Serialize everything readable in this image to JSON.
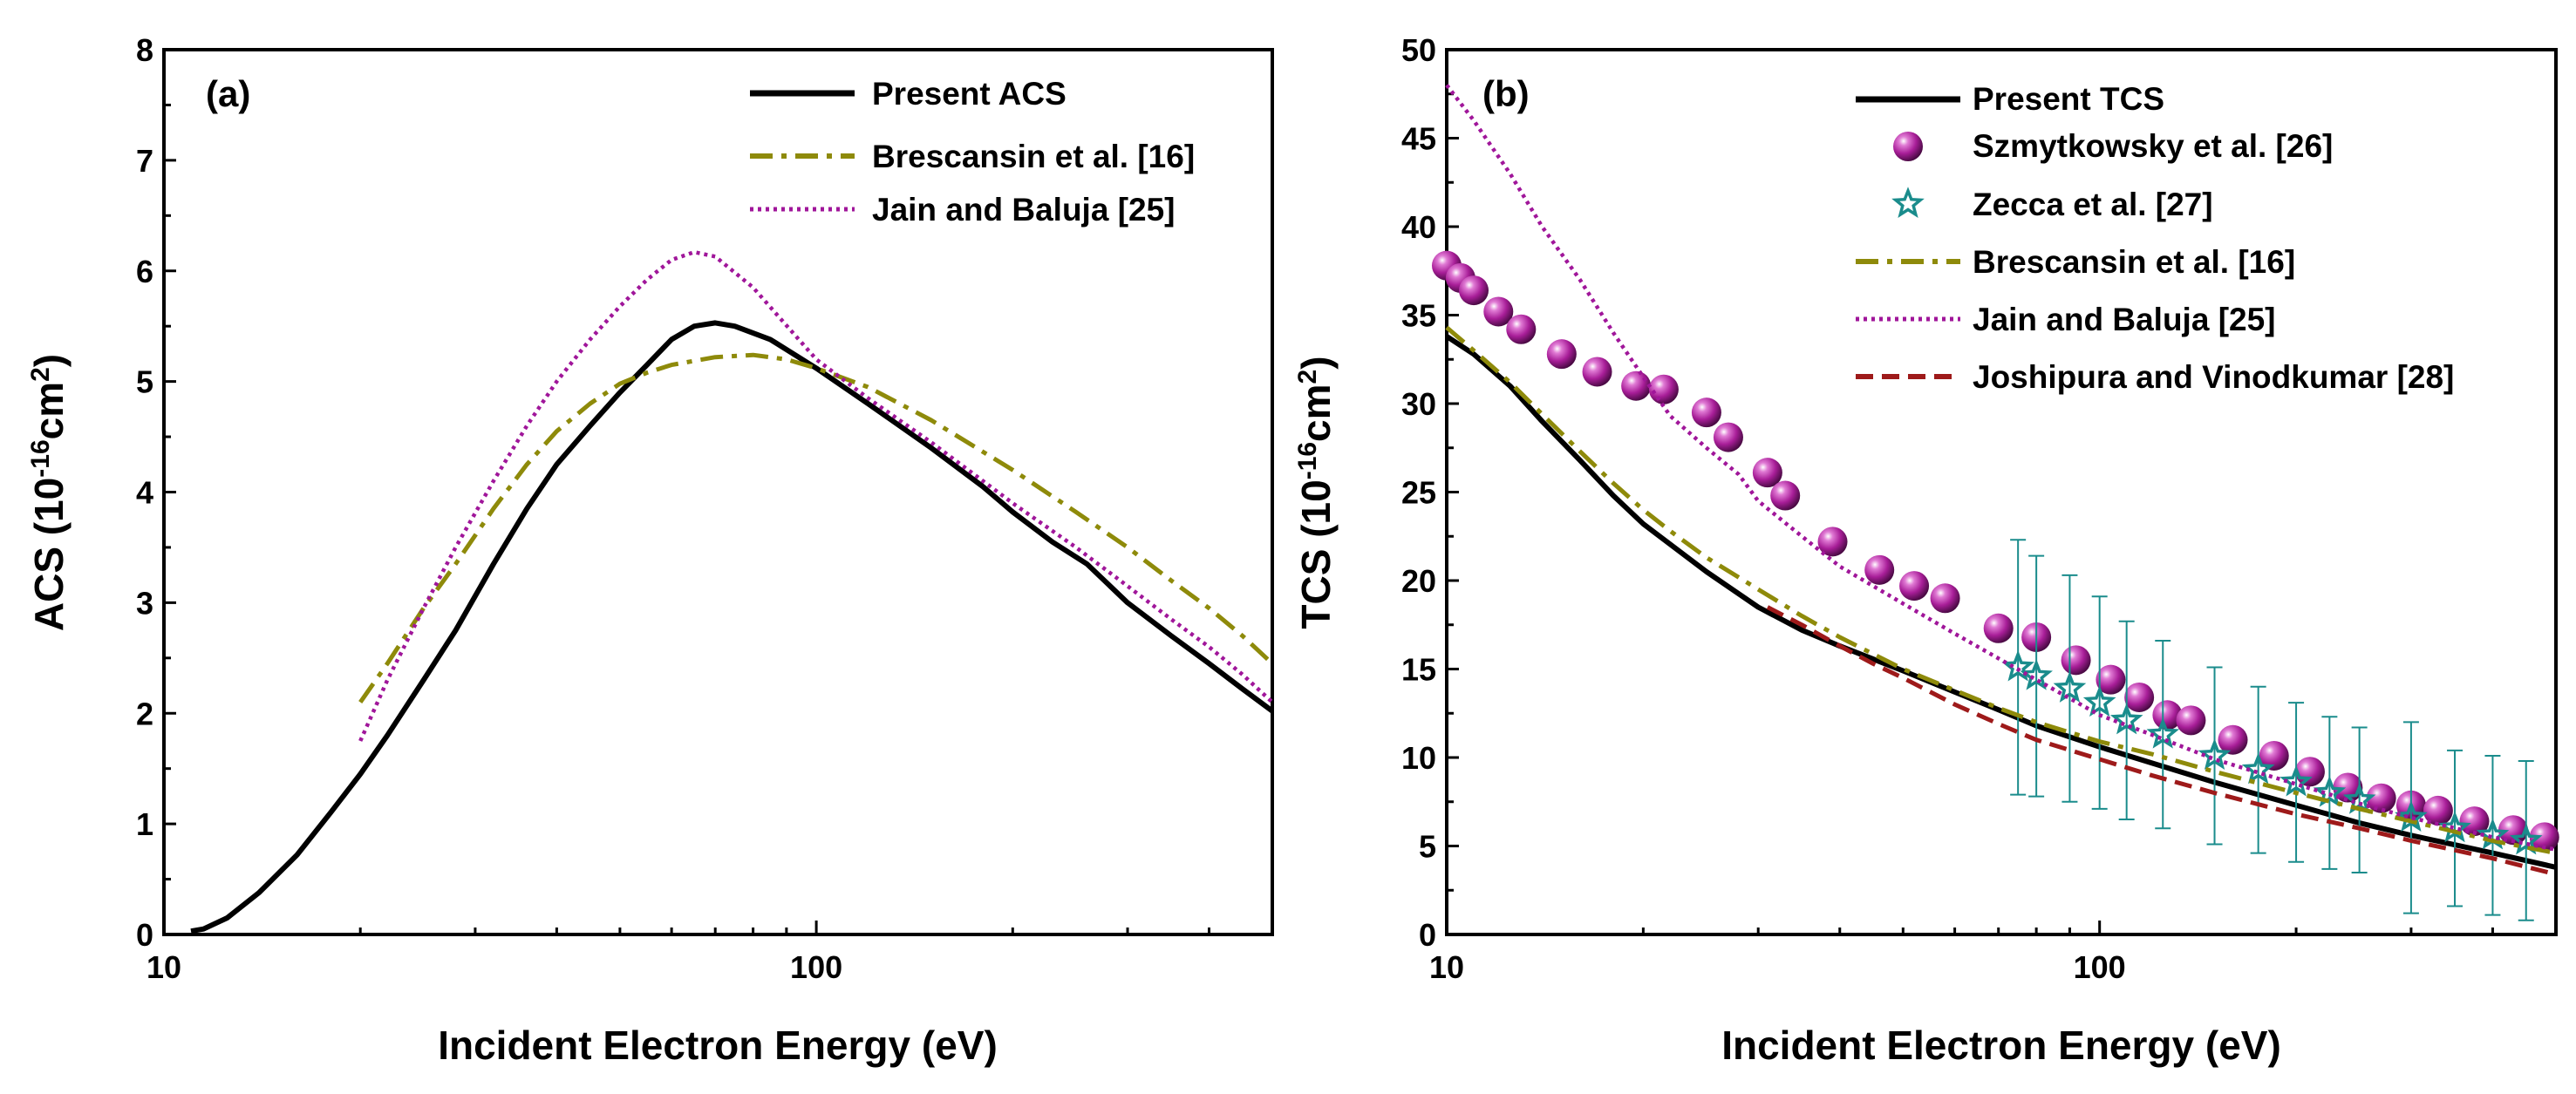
{
  "chart_data": [
    {
      "id": "a",
      "type": "line",
      "panel_label": "(a)",
      "xlabel": "Incident Electron Energy (eV)",
      "ylabel_main": "ACS (10",
      "ylabel_sup1": "-16",
      "ylabel_mid": "cm",
      "ylabel_sup2": "2",
      "ylabel_end": ")",
      "xscale": "log",
      "xlim": [
        10,
        500
      ],
      "ylim": [
        0,
        8
      ],
      "x_ticks": [
        10,
        100
      ],
      "x_tick_labels": [
        "10",
        "100"
      ],
      "y_ticks": [
        0,
        1,
        2,
        3,
        4,
        5,
        6,
        7,
        8
      ],
      "y_tick_labels": [
        "0",
        "1",
        "2",
        "3",
        "4",
        "5",
        "6",
        "7",
        "8"
      ],
      "legend_position": "top-right",
      "series": [
        {
          "name": "Present ACS",
          "style": "solid",
          "color": "#000000",
          "points": [
            [
              11,
              0.03
            ],
            [
              11.5,
              0.05
            ],
            [
              12.5,
              0.15
            ],
            [
              14,
              0.38
            ],
            [
              16,
              0.72
            ],
            [
              18,
              1.1
            ],
            [
              20,
              1.45
            ],
            [
              22,
              1.8
            ],
            [
              25,
              2.3
            ],
            [
              28,
              2.75
            ],
            [
              32,
              3.35
            ],
            [
              36,
              3.85
            ],
            [
              40,
              4.25
            ],
            [
              45,
              4.6
            ],
            [
              50,
              4.9
            ],
            [
              55,
              5.15
            ],
            [
              60,
              5.38
            ],
            [
              65,
              5.5
            ],
            [
              70,
              5.53
            ],
            [
              75,
              5.5
            ],
            [
              85,
              5.38
            ],
            [
              100,
              5.12
            ],
            [
              120,
              4.8
            ],
            [
              150,
              4.4
            ],
            [
              180,
              4.05
            ],
            [
              200,
              3.82
            ],
            [
              230,
              3.55
            ],
            [
              260,
              3.35
            ],
            [
              300,
              3.0
            ],
            [
              350,
              2.7
            ],
            [
              400,
              2.45
            ],
            [
              450,
              2.22
            ],
            [
              500,
              2.02
            ]
          ]
        },
        {
          "name": "Brescansin et al. [16]",
          "style": "dashdot",
          "color": "#8e8a0a",
          "points": [
            [
              20,
              2.1
            ],
            [
              22,
              2.45
            ],
            [
              25,
              2.95
            ],
            [
              28,
              3.35
            ],
            [
              32,
              3.85
            ],
            [
              36,
              4.25
            ],
            [
              40,
              4.55
            ],
            [
              45,
              4.8
            ],
            [
              50,
              4.98
            ],
            [
              55,
              5.08
            ],
            [
              60,
              5.15
            ],
            [
              70,
              5.22
            ],
            [
              80,
              5.24
            ],
            [
              90,
              5.2
            ],
            [
              100,
              5.12
            ],
            [
              120,
              4.95
            ],
            [
              150,
              4.65
            ],
            [
              200,
              4.2
            ],
            [
              250,
              3.82
            ],
            [
              300,
              3.5
            ],
            [
              350,
              3.2
            ],
            [
              400,
              2.95
            ],
            [
              450,
              2.7
            ],
            [
              500,
              2.45
            ]
          ]
        },
        {
          "name": "Jain and Baluja [25]",
          "style": "dotted",
          "color": "#a0169a",
          "points": [
            [
              20,
              1.75
            ],
            [
              22,
              2.3
            ],
            [
              25,
              2.95
            ],
            [
              28,
              3.5
            ],
            [
              32,
              4.1
            ],
            [
              36,
              4.6
            ],
            [
              40,
              5.0
            ],
            [
              45,
              5.38
            ],
            [
              50,
              5.68
            ],
            [
              55,
              5.92
            ],
            [
              60,
              6.1
            ],
            [
              65,
              6.17
            ],
            [
              70,
              6.13
            ],
            [
              80,
              5.85
            ],
            [
              100,
              5.2
            ],
            [
              120,
              4.85
            ],
            [
              150,
              4.45
            ],
            [
              200,
              3.9
            ],
            [
              250,
              3.5
            ],
            [
              300,
              3.15
            ],
            [
              350,
              2.85
            ],
            [
              400,
              2.6
            ],
            [
              450,
              2.35
            ],
            [
              500,
              2.1
            ]
          ]
        }
      ]
    },
    {
      "id": "b",
      "type": "line",
      "panel_label": "(b)",
      "xlabel": "Incident Electron Energy (eV)",
      "ylabel_main": "TCS (10",
      "ylabel_sup1": "-16",
      "ylabel_mid": "cm",
      "ylabel_sup2": "2",
      "ylabel_end": ")",
      "xscale": "log",
      "xlim": [
        10,
        500
      ],
      "ylim": [
        0,
        50
      ],
      "x_ticks": [
        10,
        100
      ],
      "x_tick_labels": [
        "10",
        "100"
      ],
      "y_ticks": [
        0,
        5,
        10,
        15,
        20,
        25,
        30,
        35,
        40,
        45,
        50
      ],
      "y_tick_labels": [
        "0",
        "5",
        "10",
        "15",
        "20",
        "25",
        "30",
        "35",
        "40",
        "45",
        "50"
      ],
      "legend_position": "top-right",
      "series": [
        {
          "name": "Present TCS",
          "style": "solid",
          "color": "#000000",
          "points": [
            [
              10,
              33.8
            ],
            [
              11,
              32.8
            ],
            [
              12.5,
              31.0
            ],
            [
              14,
              29.0
            ],
            [
              16,
              26.8
            ],
            [
              18,
              24.8
            ],
            [
              20,
              23.2
            ],
            [
              25,
              20.5
            ],
            [
              30,
              18.5
            ],
            [
              35,
              17.2
            ],
            [
              40,
              16.3
            ],
            [
              50,
              14.9
            ],
            [
              60,
              13.7
            ],
            [
              70,
              12.7
            ],
            [
              80,
              11.8
            ],
            [
              100,
              10.6
            ],
            [
              120,
              9.7
            ],
            [
              150,
              8.6
            ],
            [
              200,
              7.3
            ],
            [
              250,
              6.3
            ],
            [
              300,
              5.6
            ],
            [
              400,
              4.6
            ],
            [
              500,
              3.8
            ]
          ]
        },
        {
          "name": "Szmytkowsky et al. [26]",
          "style": "marker-sphere",
          "color": "#9e1f8e",
          "points": [
            [
              10,
              37.8
            ],
            [
              10.5,
              37.1
            ],
            [
              11,
              36.4
            ],
            [
              12,
              35.2
            ],
            [
              13,
              34.2
            ],
            [
              15,
              32.8
            ],
            [
              17,
              31.8
            ],
            [
              19.5,
              31.0
            ],
            [
              21.5,
              30.8
            ],
            [
              25,
              29.5
            ],
            [
              27,
              28.1
            ],
            [
              31,
              26.1
            ],
            [
              33,
              24.8
            ],
            [
              39,
              22.2
            ],
            [
              46,
              20.6
            ],
            [
              52,
              19.7
            ],
            [
              58,
              19.0
            ],
            [
              70,
              17.3
            ],
            [
              80,
              16.8
            ],
            [
              92,
              15.5
            ],
            [
              104,
              14.4
            ],
            [
              115,
              13.4
            ],
            [
              127,
              12.4
            ],
            [
              138,
              12.1
            ],
            [
              160,
              11.0
            ],
            [
              185,
              10.1
            ],
            [
              210,
              9.2
            ],
            [
              240,
              8.3
            ],
            [
              270,
              7.7
            ],
            [
              300,
              7.3
            ],
            [
              330,
              7.0
            ],
            [
              375,
              6.4
            ],
            [
              430,
              5.9
            ],
            [
              480,
              5.5
            ]
          ]
        },
        {
          "name": "Zecca et al. [27]",
          "style": "marker-star",
          "color": "#1a8c8c",
          "points": [
            [
              75,
              15.1
            ],
            [
              80,
              14.6
            ],
            [
              90,
              13.9
            ],
            [
              100,
              13.1
            ],
            [
              110,
              12.1
            ],
            [
              125,
              11.3
            ],
            [
              150,
              10.1
            ],
            [
              175,
              9.3
            ],
            [
              200,
              8.6
            ],
            [
              225,
              8.0
            ],
            [
              250,
              7.6
            ],
            [
              300,
              6.6
            ],
            [
              350,
              6.0
            ],
            [
              400,
              5.6
            ],
            [
              450,
              5.3
            ]
          ],
          "errors": [
            7.2,
            6.8,
            6.4,
            6.0,
            5.6,
            5.3,
            5.0,
            4.7,
            4.5,
            4.3,
            4.1,
            5.4,
            4.4,
            4.5,
            4.5
          ]
        },
        {
          "name": "Brescansin et al. [16]",
          "style": "dashdot",
          "color": "#8e8a0a",
          "points": [
            [
              10,
              34.3
            ],
            [
              11,
              33.0
            ],
            [
              12.5,
              31.2
            ],
            [
              14,
              29.4
            ],
            [
              16,
              27.3
            ],
            [
              18,
              25.5
            ],
            [
              20,
              24.0
            ],
            [
              22,
              22.8
            ],
            [
              25,
              21.3
            ],
            [
              30,
              19.5
            ],
            [
              35,
              18.0
            ],
            [
              40,
              16.8
            ],
            [
              50,
              15.0
            ],
            [
              60,
              13.8
            ],
            [
              70,
              12.8
            ],
            [
              80,
              12.0
            ],
            [
              100,
              10.9
            ],
            [
              120,
              10.2
            ],
            [
              150,
              9.2
            ],
            [
              200,
              8.0
            ],
            [
              250,
              7.1
            ],
            [
              300,
              6.4
            ],
            [
              400,
              5.3
            ],
            [
              500,
              4.6
            ]
          ]
        },
        {
          "name": "Jain and Baluja [25]",
          "style": "dotted",
          "color": "#a0169a",
          "points": [
            [
              10,
              48.0
            ],
            [
              11,
              46.0
            ],
            [
              12.5,
              43.0
            ],
            [
              14,
              40.0
            ],
            [
              16,
              37.0
            ],
            [
              18,
              34.0
            ],
            [
              20,
              31.5
            ],
            [
              22,
              29.3
            ],
            [
              25,
              27.5
            ],
            [
              28,
              26.0
            ],
            [
              30,
              24.5
            ],
            [
              35,
              22.5
            ],
            [
              40,
              20.8
            ],
            [
              50,
              18.7
            ],
            [
              60,
              17.0
            ],
            [
              70,
              15.6
            ],
            [
              80,
              14.4
            ],
            [
              100,
              12.4
            ],
            [
              120,
              11.3
            ],
            [
              150,
              9.9
            ],
            [
              200,
              8.5
            ],
            [
              250,
              7.4
            ],
            [
              300,
              6.6
            ],
            [
              400,
              5.5
            ],
            [
              500,
              4.8
            ]
          ]
        },
        {
          "name": "Joshipura and Vinodkumar [28]",
          "style": "dashed",
          "color": "#9e1a1a",
          "points": [
            [
              31,
              18.5
            ],
            [
              35,
              17.5
            ],
            [
              40,
              16.3
            ],
            [
              45,
              15.3
            ],
            [
              50,
              14.5
            ],
            [
              60,
              13.0
            ],
            [
              70,
              11.9
            ],
            [
              80,
              11.0
            ],
            [
              100,
              9.9
            ],
            [
              120,
              9.0
            ],
            [
              150,
              8.0
            ],
            [
              200,
              6.8
            ],
            [
              250,
              6.0
            ],
            [
              300,
              5.3
            ],
            [
              400,
              4.3
            ],
            [
              500,
              3.4
            ]
          ]
        }
      ]
    }
  ]
}
